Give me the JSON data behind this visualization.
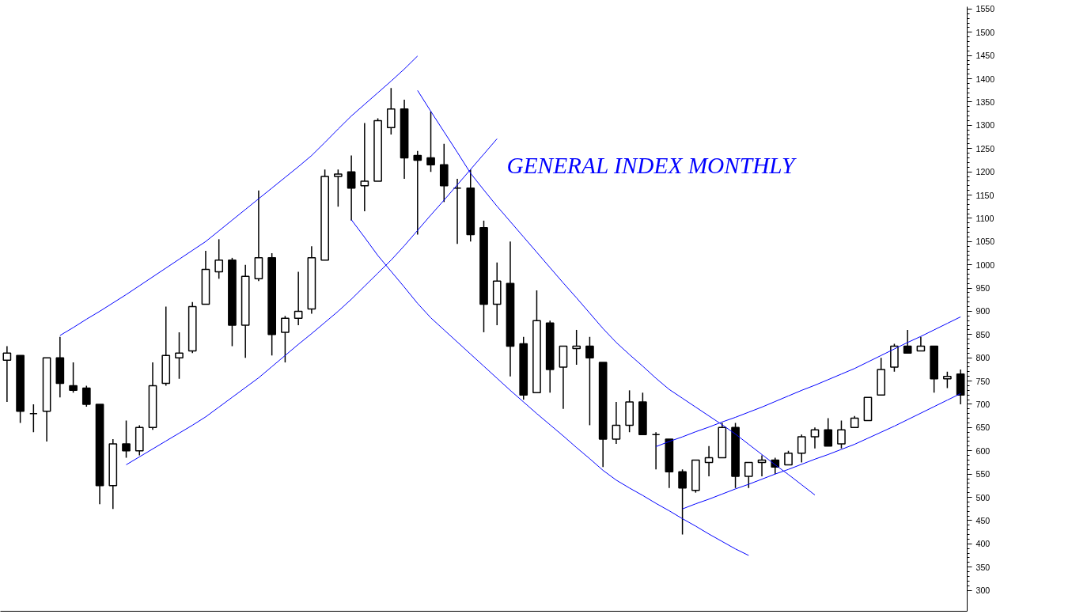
{
  "chart_data": {
    "type": "candlestick",
    "title": "GENERAL INDEX MONTHLY",
    "categories": [
      null,
      null,
      null,
      null,
      null,
      null,
      null,
      null,
      null,
      null,
      null,
      null,
      null,
      null,
      null,
      null,
      null,
      null,
      null,
      null,
      null,
      null,
      null,
      null,
      null,
      null,
      null,
      null,
      null,
      null,
      null,
      null,
      null,
      null,
      null,
      null,
      null,
      null,
      null,
      null,
      null,
      null,
      null,
      null,
      null,
      null,
      null,
      null,
      null,
      null,
      null,
      null,
      null,
      null,
      null,
      null,
      null,
      null,
      null,
      null,
      null,
      null,
      null,
      null,
      null,
      null,
      null,
      null,
      null,
      null,
      null,
      null,
      null
    ],
    "ohlc": [
      [
        795,
        825,
        705,
        810
      ],
      [
        805,
        805,
        660,
        685
      ],
      [
        680,
        700,
        640,
        680
      ],
      [
        685,
        800,
        620,
        800
      ],
      [
        800,
        845,
        715,
        745
      ],
      [
        740,
        790,
        725,
        730
      ],
      [
        735,
        740,
        695,
        700
      ],
      [
        700,
        700,
        485,
        525
      ],
      [
        525,
        625,
        475,
        615
      ],
      [
        615,
        665,
        585,
        600
      ],
      [
        600,
        655,
        590,
        650
      ],
      [
        650,
        790,
        645,
        740
      ],
      [
        745,
        910,
        740,
        805
      ],
      [
        800,
        855,
        755,
        810
      ],
      [
        815,
        920,
        810,
        910
      ],
      [
        915,
        1030,
        915,
        990
      ],
      [
        985,
        1055,
        970,
        1010
      ],
      [
        1010,
        1015,
        825,
        870
      ],
      [
        870,
        1000,
        800,
        975
      ],
      [
        970,
        1160,
        965,
        1015
      ],
      [
        1015,
        1025,
        805,
        850
      ],
      [
        855,
        890,
        790,
        885
      ],
      [
        885,
        985,
        870,
        900
      ],
      [
        905,
        1040,
        895,
        1015
      ],
      [
        1010,
        1205,
        1010,
        1190
      ],
      [
        1190,
        1205,
        1125,
        1195
      ],
      [
        1200,
        1235,
        1095,
        1165
      ],
      [
        1170,
        1305,
        1115,
        1180
      ],
      [
        1180,
        1315,
        1180,
        1310
      ],
      [
        1295,
        1380,
        1280,
        1335
      ],
      [
        1335,
        1355,
        1185,
        1230
      ],
      [
        1235,
        1245,
        1065,
        1225
      ],
      [
        1230,
        1330,
        1200,
        1215
      ],
      [
        1215,
        1260,
        1135,
        1170
      ],
      [
        1165,
        1185,
        1045,
        1165
      ],
      [
        1165,
        1205,
        1050,
        1065
      ],
      [
        1080,
        1095,
        855,
        915
      ],
      [
        915,
        1005,
        870,
        965
      ],
      [
        960,
        1050,
        760,
        825
      ],
      [
        830,
        845,
        710,
        720
      ],
      [
        725,
        945,
        725,
        880
      ],
      [
        875,
        880,
        725,
        775
      ],
      [
        780,
        825,
        690,
        825
      ],
      [
        820,
        860,
        785,
        825
      ],
      [
        825,
        845,
        655,
        800
      ],
      [
        790,
        790,
        565,
        625
      ],
      [
        625,
        705,
        615,
        655
      ],
      [
        655,
        730,
        640,
        705
      ],
      [
        705,
        725,
        635,
        635
      ],
      [
        635,
        640,
        560,
        635
      ],
      [
        625,
        625,
        520,
        555
      ],
      [
        555,
        560,
        420,
        520
      ],
      [
        515,
        580,
        510,
        580
      ],
      [
        575,
        610,
        545,
        585
      ],
      [
        585,
        660,
        585,
        650
      ],
      [
        650,
        660,
        520,
        545
      ],
      [
        545,
        575,
        520,
        575
      ],
      [
        575,
        590,
        545,
        580
      ],
      [
        580,
        585,
        550,
        565
      ],
      [
        570,
        600,
        570,
        595
      ],
      [
        595,
        635,
        575,
        630
      ],
      [
        630,
        650,
        605,
        645
      ],
      [
        645,
        670,
        610,
        610
      ],
      [
        615,
        665,
        605,
        645
      ],
      [
        650,
        675,
        650,
        670
      ],
      [
        665,
        715,
        665,
        715
      ],
      [
        720,
        800,
        720,
        775
      ],
      [
        780,
        830,
        770,
        825
      ],
      [
        825,
        860,
        810,
        810
      ],
      [
        815,
        845,
        815,
        825
      ],
      [
        825,
        825,
        725,
        755
      ],
      [
        755,
        770,
        735,
        760
      ],
      [
        765,
        775,
        700,
        720
      ]
    ],
    "series": [
      {
        "type": "line",
        "color": "#0000ff",
        "values": [
          null,
          null,
          null,
          null,
          848,
          865,
          883,
          900,
          918,
          936,
          955,
          974,
          993,
          1012,
          1031,
          1050,
          1073,
          1096,
          1119,
          1142,
          1165,
          1188,
          1211,
          1235,
          1263,
          1292,
          1320,
          1345,
          1370,
          1395,
          1421,
          1449,
          null,
          null,
          null,
          null,
          null,
          null,
          null,
          null,
          null,
          null,
          null,
          null,
          null,
          null,
          null,
          null,
          null,
          null,
          null,
          null,
          null,
          null,
          null,
          null,
          null,
          null,
          null,
          null,
          null,
          null,
          null,
          null,
          null,
          null,
          null,
          null,
          null,
          null,
          null,
          null,
          null
        ]
      },
      {
        "type": "line",
        "color": "#0000ff",
        "values": [
          null,
          null,
          null,
          null,
          null,
          null,
          null,
          null,
          null,
          570,
          587,
          604,
          621,
          638,
          655,
          673,
          694,
          715,
          736,
          757,
          781,
          805,
          829,
          852,
          876,
          900,
          926,
          954,
          982,
          1010,
          1041,
          1074,
          1107,
          1139,
          1172,
          1205,
          1238,
          1271,
          null,
          null,
          null,
          null,
          null,
          null,
          null,
          null,
          null,
          null,
          null,
          null,
          null,
          null,
          null,
          null,
          null,
          null,
          null,
          null,
          null,
          null,
          null,
          null,
          null,
          null,
          null,
          null,
          null,
          null,
          null,
          null,
          null,
          null,
          null
        ]
      },
      {
        "type": "line",
        "color": "#0000ff",
        "values": [
          null,
          null,
          null,
          null,
          null,
          null,
          null,
          null,
          null,
          null,
          null,
          null,
          null,
          null,
          null,
          null,
          null,
          null,
          null,
          null,
          null,
          null,
          null,
          null,
          null,
          null,
          1097,
          1059,
          1020,
          986,
          952,
          917,
          886,
          860,
          834,
          808,
          782,
          756,
          730,
          705,
          680,
          656,
          632,
          607,
          583,
          558,
          537,
          520,
          504,
          487,
          471,
          454,
          438,
          421,
          405,
          389,
          375,
          null,
          null,
          null,
          null,
          null,
          null,
          null,
          null,
          null,
          null,
          null,
          null,
          null,
          null,
          null,
          null
        ]
      },
      {
        "type": "line",
        "color": "#0000ff",
        "values": [
          null,
          null,
          null,
          null,
          null,
          null,
          null,
          null,
          null,
          null,
          null,
          null,
          null,
          null,
          null,
          null,
          null,
          null,
          null,
          null,
          null,
          null,
          null,
          null,
          null,
          null,
          null,
          null,
          null,
          null,
          null,
          1375,
          1330,
          1286,
          1242,
          1197,
          1161,
          1126,
          1093,
          1060,
          1027,
          994,
          961,
          929,
          896,
          863,
          833,
          807,
          782,
          756,
          732,
          713,
          694,
          675,
          656,
          636,
          614,
          592,
          570,
          549,
          527,
          505,
          null,
          null,
          null,
          null,
          null,
          null,
          null,
          null,
          null,
          null,
          null
        ]
      },
      {
        "type": "line",
        "color": "#0000ff",
        "values": [
          null,
          null,
          null,
          null,
          null,
          null,
          null,
          null,
          null,
          null,
          null,
          null,
          null,
          null,
          null,
          null,
          null,
          null,
          null,
          null,
          null,
          null,
          null,
          null,
          null,
          null,
          null,
          null,
          null,
          null,
          null,
          null,
          null,
          null,
          null,
          null,
          null,
          null,
          null,
          null,
          null,
          null,
          null,
          null,
          null,
          null,
          null,
          null,
          null,
          609,
          620,
          630,
          641,
          651,
          662,
          672,
          683,
          694,
          706,
          718,
          730,
          741,
          753,
          765,
          777,
          791,
          805,
          819,
          833,
          846,
          860,
          874,
          888
        ]
      },
      {
        "type": "line",
        "color": "#0000ff",
        "values": [
          null,
          null,
          null,
          null,
          null,
          null,
          null,
          null,
          null,
          null,
          null,
          null,
          null,
          null,
          null,
          null,
          null,
          null,
          null,
          null,
          null,
          null,
          null,
          null,
          null,
          null,
          null,
          null,
          null,
          null,
          null,
          null,
          null,
          null,
          null,
          null,
          null,
          null,
          null,
          null,
          null,
          null,
          null,
          null,
          null,
          null,
          null,
          null,
          null,
          null,
          null,
          475,
          486,
          496,
          507,
          518,
          528,
          539,
          550,
          560,
          571,
          582,
          592,
          603,
          614,
          627,
          640,
          653,
          667,
          681,
          695,
          709,
          723
        ]
      }
    ],
    "ylim": [
      255,
      1555
    ],
    "yticks": [
      300,
      350,
      400,
      450,
      500,
      550,
      600,
      650,
      700,
      750,
      800,
      850,
      900,
      950,
      1000,
      1050,
      1100,
      1150,
      1200,
      1250,
      1300,
      1350,
      1400,
      1450,
      1500,
      1550
    ],
    "tick_labels": "y"
  }
}
